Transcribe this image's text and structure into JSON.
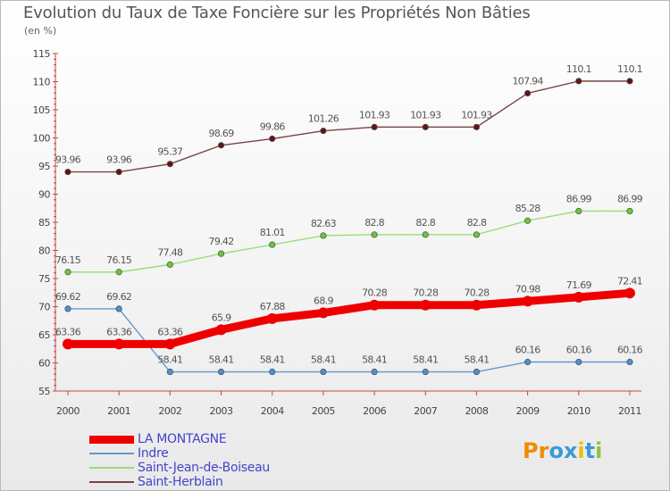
{
  "chart_data": {
    "type": "line",
    "title": "Evolution du Taux de Taxe Foncière sur les Propriétés Non Bâties",
    "subtitle": "(en %)",
    "categories": [
      "2000",
      "2001",
      "2002",
      "2003",
      "2004",
      "2005",
      "2006",
      "2007",
      "2008",
      "2009",
      "2010",
      "2011"
    ],
    "ylim": [
      55,
      115
    ],
    "yticks": [
      "55",
      "60",
      "65",
      "70",
      "75",
      "80",
      "85",
      "90",
      "95",
      "100",
      "105",
      "110",
      "115"
    ],
    "grid": false,
    "legend_position": "bottom-left",
    "series": [
      {
        "name": "LA MONTAGNE",
        "color": "#ee0000",
        "bold": true,
        "values": [
          63.36,
          63.36,
          63.36,
          65.9,
          67.88,
          68.9,
          70.28,
          70.28,
          70.28,
          70.98,
          71.69,
          72.41
        ],
        "labels": [
          "63.36",
          "63.36",
          "63.36",
          "65.9",
          "67.88",
          "68.9",
          "70.28",
          "70.28",
          "70.28",
          "70.98",
          "71.69",
          "72.41"
        ]
      },
      {
        "name": "Indre",
        "color": "#6699cc",
        "marker": "#4a90d9",
        "values": [
          69.62,
          69.62,
          58.41,
          58.41,
          58.41,
          58.41,
          58.41,
          58.41,
          58.41,
          60.16,
          60.16,
          60.16
        ],
        "labels": [
          "69.62",
          "69.62",
          "58.41",
          "58.41",
          "58.41",
          "58.41",
          "58.41",
          "58.41",
          "58.41",
          "60.16",
          "60.16",
          "60.16"
        ]
      },
      {
        "name": "Saint-Jean-de-Boiseau",
        "color": "#99dd77",
        "marker": "#66cc33",
        "values": [
          76.15,
          76.15,
          77.48,
          79.42,
          81.01,
          82.63,
          82.8,
          82.8,
          82.8,
          85.28,
          86.99,
          86.99
        ],
        "labels": [
          "76.15",
          "76.15",
          "77.48",
          "79.42",
          "81.01",
          "82.63",
          "82.8",
          "82.8",
          "82.8",
          "85.28",
          "86.99",
          "86.99"
        ]
      },
      {
        "name": "Saint-Herblain",
        "color": "#774444",
        "marker": "#661111",
        "values": [
          93.96,
          93.96,
          95.37,
          98.69,
          99.86,
          101.26,
          101.93,
          101.93,
          101.93,
          107.94,
          110.1,
          110.1
        ],
        "labels": [
          "93.96",
          "93.96",
          "95.37",
          "98.69",
          "99.86",
          "101.26",
          "101.93",
          "101.93",
          "101.93",
          "107.94",
          "110.1",
          "110.1"
        ]
      }
    ]
  },
  "logo": {
    "text": "Proxiti",
    "letters": [
      "P",
      "r",
      "o",
      "x",
      "i",
      "t",
      "i"
    ],
    "colors": [
      "#f08c00",
      "#f08c00",
      "#3a9ad9",
      "#3a9ad9",
      "#e8c000",
      "#3a9ad9",
      "#8cc63f"
    ]
  }
}
